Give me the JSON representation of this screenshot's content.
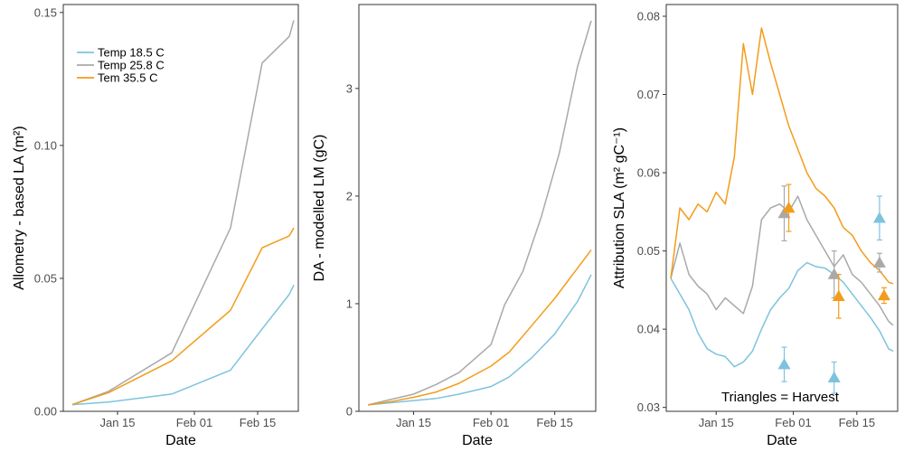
{
  "colors": {
    "temp_18_5": "#7ec3dd",
    "temp_25_8": "#a9a9a9",
    "temp_35_5": "#f39c1a"
  },
  "chart_data": [
    {
      "type": "line",
      "xlabel": "Date",
      "ylabel": "Allometry - based LA (m²)",
      "xlim": [
        "2014-01-03",
        "2014-02-24"
      ],
      "ylim": [
        0,
        0.153
      ],
      "yticks": [
        0.0,
        0.05,
        0.1,
        0.15
      ],
      "ytick_labels": [
        "0.00",
        "0.05",
        "0.10",
        "0.15"
      ],
      "xticks": [
        "2014-01-15",
        "2014-02-01",
        "2014-02-15"
      ],
      "xtick_labels": [
        "Jan 15",
        "Feb 01",
        "Feb 15"
      ],
      "legend": "top-left",
      "series": [
        {
          "name": "Temp 18.5 C",
          "color": "#7ec3dd",
          "x": [
            "2014-01-05",
            "2014-01-13",
            "2014-01-27",
            "2014-02-09",
            "2014-02-16",
            "2014-02-22",
            "2014-02-23"
          ],
          "y": [
            0.0025,
            0.0035,
            0.0065,
            0.0155,
            0.031,
            0.044,
            0.0475
          ]
        },
        {
          "name": "Temp 25.8 C",
          "color": "#a9a9a9",
          "x": [
            "2014-01-05",
            "2014-01-13",
            "2014-01-27",
            "2014-02-09",
            "2014-02-16",
            "2014-02-22",
            "2014-02-23"
          ],
          "y": [
            0.0025,
            0.0075,
            0.022,
            0.069,
            0.131,
            0.141,
            0.147
          ]
        },
        {
          "name": "Tem 35.5 C",
          "color": "#f39c1a",
          "x": [
            "2014-01-05",
            "2014-01-13",
            "2014-01-27",
            "2014-02-09",
            "2014-02-16",
            "2014-02-22",
            "2014-02-23"
          ],
          "y": [
            0.0025,
            0.007,
            0.019,
            0.038,
            0.0615,
            0.066,
            0.069
          ]
        }
      ]
    },
    {
      "type": "line",
      "xlabel": "Date",
      "ylabel": "DA - modelled LM (gC)",
      "xlim": [
        "2014-01-03",
        "2014-02-24"
      ],
      "ylim": [
        0,
        3.78
      ],
      "yticks": [
        0,
        1,
        2,
        3
      ],
      "ytick_labels": [
        "0",
        "1",
        "2",
        "3"
      ],
      "xticks": [
        "2014-01-15",
        "2014-02-01",
        "2014-02-15"
      ],
      "xtick_labels": [
        "Jan 15",
        "Feb 01",
        "Feb 15"
      ],
      "series": [
        {
          "name": "Temp 18.5 C",
          "color": "#7ec3dd",
          "x": [
            "2014-01-05",
            "2014-01-10",
            "2014-01-15",
            "2014-01-20",
            "2014-01-25",
            "2014-02-01",
            "2014-02-05",
            "2014-02-10",
            "2014-02-15",
            "2014-02-20",
            "2014-02-23"
          ],
          "y": [
            0.06,
            0.08,
            0.1,
            0.12,
            0.16,
            0.23,
            0.32,
            0.5,
            0.72,
            1.02,
            1.27
          ]
        },
        {
          "name": "Temp 25.8 C",
          "color": "#a9a9a9",
          "x": [
            "2014-01-05",
            "2014-01-10",
            "2014-01-15",
            "2014-01-20",
            "2014-01-25",
            "2014-02-01",
            "2014-02-04",
            "2014-02-08",
            "2014-02-12",
            "2014-02-16",
            "2014-02-20",
            "2014-02-23"
          ],
          "y": [
            0.06,
            0.11,
            0.16,
            0.25,
            0.36,
            0.62,
            0.99,
            1.3,
            1.8,
            2.4,
            3.2,
            3.63
          ]
        },
        {
          "name": "Tem 35.5 C",
          "color": "#f39c1a",
          "x": [
            "2014-01-05",
            "2014-01-10",
            "2014-01-15",
            "2014-01-20",
            "2014-01-25",
            "2014-02-01",
            "2014-02-05",
            "2014-02-10",
            "2014-02-15",
            "2014-02-20",
            "2014-02-23"
          ],
          "y": [
            0.06,
            0.09,
            0.13,
            0.18,
            0.26,
            0.42,
            0.55,
            0.8,
            1.05,
            1.33,
            1.5
          ]
        }
      ]
    },
    {
      "type": "line",
      "xlabel": "Date",
      "ylabel": "Attribution SLA (m² gC⁻¹)",
      "xlim": [
        "2014-01-04",
        "2014-02-24"
      ],
      "ylim": [
        0.0295,
        0.0815
      ],
      "yticks": [
        0.03,
        0.04,
        0.05,
        0.06,
        0.07,
        0.08
      ],
      "ytick_labels": [
        "0.03",
        "0.04",
        "0.05",
        "0.06",
        "0.07",
        "0.08"
      ],
      "xticks": [
        "2014-01-15",
        "2014-02-01",
        "2014-02-15"
      ],
      "xtick_labels": [
        "Jan 15",
        "Feb 01",
        "Feb 15"
      ],
      "annotation": "Triangles = Harvest",
      "series": [
        {
          "name": "Temp 18.5 C",
          "color": "#7ec3dd",
          "x": [
            "2014-01-05",
            "2014-01-07",
            "2014-01-09",
            "2014-01-11",
            "2014-01-13",
            "2014-01-15",
            "2014-01-17",
            "2014-01-19",
            "2014-01-21",
            "2014-01-23",
            "2014-01-25",
            "2014-01-27",
            "2014-01-29",
            "2014-01-31",
            "2014-02-02",
            "2014-02-04",
            "2014-02-06",
            "2014-02-08",
            "2014-02-10",
            "2014-02-12",
            "2014-02-14",
            "2014-02-16",
            "2014-02-18",
            "2014-02-20",
            "2014-02-22",
            "2014-02-23"
          ],
          "y": [
            0.0465,
            0.0445,
            0.0425,
            0.0395,
            0.0375,
            0.0368,
            0.0365,
            0.0352,
            0.0358,
            0.0372,
            0.04,
            0.0425,
            0.044,
            0.0452,
            0.0475,
            0.0485,
            0.048,
            0.0478,
            0.047,
            0.046,
            0.0445,
            0.043,
            0.0415,
            0.0398,
            0.0375,
            0.0372
          ]
        },
        {
          "name": "Temp 25.8 C",
          "color": "#a9a9a9",
          "x": [
            "2014-01-05",
            "2014-01-07",
            "2014-01-09",
            "2014-01-11",
            "2014-01-13",
            "2014-01-15",
            "2014-01-17",
            "2014-01-19",
            "2014-01-21",
            "2014-01-23",
            "2014-01-25",
            "2014-01-27",
            "2014-01-29",
            "2014-01-31",
            "2014-02-02",
            "2014-02-04",
            "2014-02-06",
            "2014-02-08",
            "2014-02-10",
            "2014-02-12",
            "2014-02-14",
            "2014-02-16",
            "2014-02-18",
            "2014-02-20",
            "2014-02-22",
            "2014-02-23"
          ],
          "y": [
            0.0465,
            0.051,
            0.047,
            0.0455,
            0.0445,
            0.0425,
            0.044,
            0.043,
            0.042,
            0.0455,
            0.054,
            0.0555,
            0.056,
            0.055,
            0.057,
            0.054,
            0.052,
            0.05,
            0.048,
            0.0495,
            0.047,
            0.046,
            0.0445,
            0.043,
            0.041,
            0.0405
          ]
        },
        {
          "name": "Tem 35.5 C",
          "color": "#f39c1a",
          "x": [
            "2014-01-05",
            "2014-01-07",
            "2014-01-09",
            "2014-01-11",
            "2014-01-13",
            "2014-01-15",
            "2014-01-17",
            "2014-01-19",
            "2014-01-21",
            "2014-01-23",
            "2014-01-25",
            "2014-01-27",
            "2014-01-29",
            "2014-01-31",
            "2014-02-02",
            "2014-02-04",
            "2014-02-06",
            "2014-02-08",
            "2014-02-10",
            "2014-02-12",
            "2014-02-14",
            "2014-02-16",
            "2014-02-18",
            "2014-02-20",
            "2014-02-22",
            "2014-02-23"
          ],
          "y": [
            0.0465,
            0.0555,
            0.054,
            0.056,
            0.055,
            0.0575,
            0.056,
            0.062,
            0.0765,
            0.07,
            0.0785,
            0.074,
            0.07,
            0.066,
            0.063,
            0.06,
            0.058,
            0.057,
            0.0555,
            0.053,
            0.052,
            0.05,
            0.0485,
            0.0475,
            0.046,
            0.0458
          ]
        }
      ],
      "harvests": [
        {
          "series": "Temp 18.5 C",
          "color": "#7ec3dd",
          "x": [
            "2014-01-30",
            "2014-02-10",
            "2014-02-20"
          ],
          "y": [
            0.0355,
            0.0338,
            0.0542
          ],
          "err": [
            0.0022,
            0.002,
            0.0028
          ]
        },
        {
          "series": "Temp 25.8 C",
          "color": "#a9a9a9",
          "x": [
            "2014-01-30",
            "2014-02-10",
            "2014-02-20"
          ],
          "y": [
            0.0548,
            0.047,
            0.0485
          ],
          "err": [
            0.0035,
            0.003,
            0.0012
          ]
        },
        {
          "series": "Tem 35.5 C",
          "color": "#f39c1a",
          "x": [
            "2014-01-31",
            "2014-02-11",
            "2014-02-21"
          ],
          "y": [
            0.0555,
            0.0442,
            0.0443
          ],
          "err": [
            0.003,
            0.0028,
            0.001
          ]
        }
      ]
    }
  ]
}
